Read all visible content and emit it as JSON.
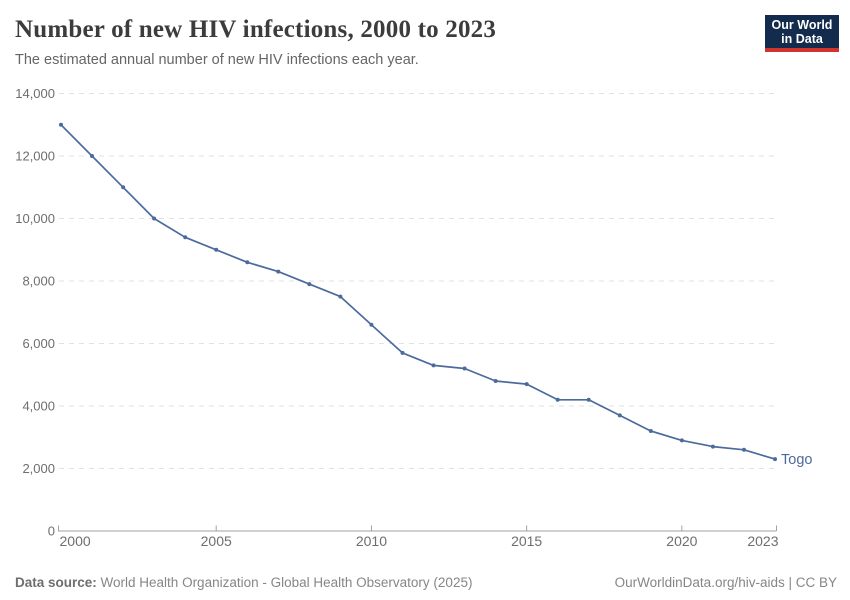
{
  "header": {
    "title": "Number of new HIV infections, 2000 to 2023",
    "subtitle": "The estimated annual number of new HIV infections each year.",
    "logo": {
      "line1": "Our World",
      "line2": "in Data"
    }
  },
  "chart_data": {
    "type": "line",
    "title": "Number of new HIV infections, 2000 to 2023",
    "xlabel": "",
    "ylabel": "",
    "ylim": [
      0,
      14000
    ],
    "yticks": [
      0,
      2000,
      4000,
      6000,
      8000,
      10000,
      12000,
      14000
    ],
    "xticks": [
      2000,
      2005,
      2010,
      2015,
      2020,
      2023
    ],
    "grid": "horizontal-dashed",
    "legend_position": "end-of-line-label",
    "x": [
      2000,
      2001,
      2002,
      2003,
      2004,
      2005,
      2006,
      2007,
      2008,
      2009,
      2010,
      2011,
      2012,
      2013,
      2014,
      2015,
      2016,
      2017,
      2018,
      2019,
      2020,
      2021,
      2022,
      2023
    ],
    "series": [
      {
        "name": "Togo",
        "color": "#4c6a9c",
        "values": [
          13000,
          12000,
          11000,
          10000,
          9400,
          9000,
          8600,
          8300,
          7900,
          7500,
          6600,
          5700,
          5300,
          5200,
          4800,
          4700,
          4200,
          4200,
          3700,
          3200,
          2900,
          2700,
          2600,
          2300
        ]
      }
    ],
    "colors": {
      "gridline": "#e2e2e2",
      "axis": "#a1a1a1",
      "tick_label": "#6e6e6e"
    }
  },
  "footer": {
    "source_label": "Data source:",
    "source_text": " World Health Organization - Global Health Observatory (2025)",
    "credit": "OurWorldinData.org/hiv-aids | CC BY"
  }
}
